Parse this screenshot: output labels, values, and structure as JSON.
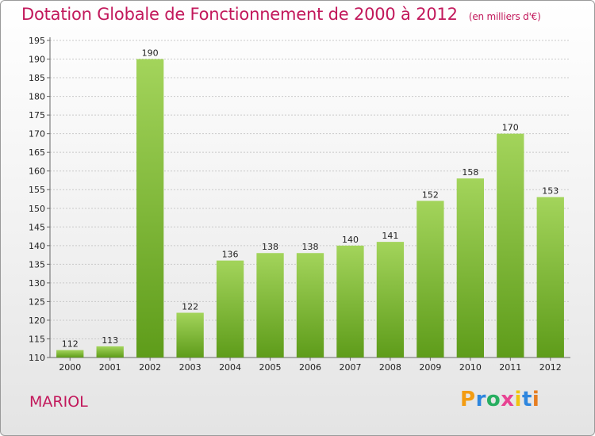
{
  "title": "Dotation Globale de Fonctionnement de 2000 à 2012",
  "subtitle": "(en milliers d'€)",
  "commune": "MARIOL",
  "logo_text": "Proxiti",
  "chart_data": {
    "type": "bar",
    "title": "Dotation Globale de Fonctionnement de 2000 à 2012",
    "subtitle": "(en milliers d'€)",
    "xlabel": "",
    "ylabel": "",
    "categories": [
      "2000",
      "2001",
      "2002",
      "2003",
      "2004",
      "2005",
      "2006",
      "2007",
      "2008",
      "2009",
      "2010",
      "2011",
      "2012"
    ],
    "values": [
      112,
      113,
      190,
      122,
      136,
      138,
      138,
      140,
      141,
      152,
      158,
      170,
      153
    ],
    "ylim": [
      110,
      195
    ],
    "yticks": [
      110,
      115,
      120,
      125,
      130,
      135,
      140,
      145,
      150,
      155,
      160,
      165,
      170,
      175,
      180,
      185,
      190,
      195
    ],
    "grid": true,
    "bar_color_top": "#a3d45b",
    "bar_color_bottom": "#5e9c1a",
    "title_color": "#c2185b"
  }
}
